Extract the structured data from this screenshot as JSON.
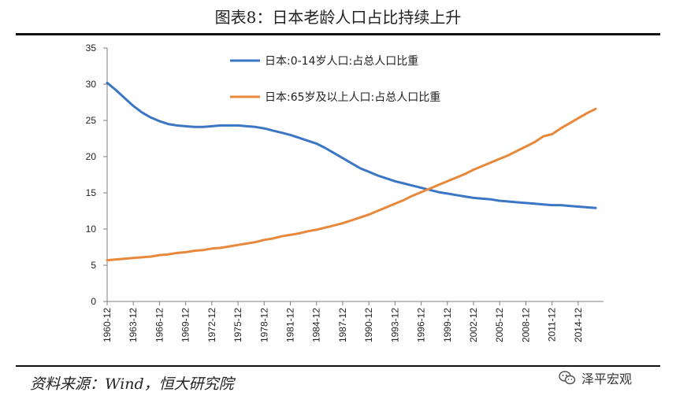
{
  "title": "图表8：日本老龄人口占比持续上升",
  "source": "资料来源：Wind，恒大研究院",
  "watermark": "泽平宏观",
  "colors": {
    "blue": "#3b76c4",
    "orange": "#e8883a",
    "axis": "#7f7f7f"
  },
  "chart_data": {
    "type": "line",
    "ylim": [
      0,
      35
    ],
    "yticks": [
      0,
      5,
      10,
      15,
      20,
      25,
      30,
      35
    ],
    "xticks": [
      "1960-12",
      "1963-12",
      "1966-12",
      "1969-12",
      "1972-12",
      "1975-12",
      "1978-12",
      "1981-12",
      "1984-12",
      "1987-12",
      "1990-12",
      "1993-12",
      "1996-12",
      "1999-12",
      "2002-12",
      "2005-12",
      "2008-12",
      "2011-12",
      "2014-12"
    ],
    "x": [
      1960,
      1961,
      1962,
      1963,
      1964,
      1965,
      1966,
      1967,
      1968,
      1969,
      1970,
      1971,
      1972,
      1973,
      1974,
      1975,
      1976,
      1977,
      1978,
      1979,
      1980,
      1981,
      1982,
      1983,
      1984,
      1985,
      1986,
      1987,
      1988,
      1989,
      1990,
      1991,
      1992,
      1993,
      1994,
      1995,
      1996,
      1997,
      1998,
      1999,
      2000,
      2001,
      2002,
      2003,
      2004,
      2005,
      2006,
      2007,
      2008,
      2009,
      2010,
      2011,
      2012,
      2013,
      2014,
      2015,
      2016
    ],
    "series": [
      {
        "name": "日本:0-14岁人口:占总人口比重",
        "color": "#3b76c4",
        "values": [
          30.2,
          29.2,
          28.1,
          27.0,
          26.1,
          25.4,
          24.9,
          24.5,
          24.3,
          24.2,
          24.1,
          24.1,
          24.2,
          24.3,
          24.3,
          24.3,
          24.2,
          24.1,
          23.9,
          23.6,
          23.3,
          23.0,
          22.6,
          22.2,
          21.8,
          21.2,
          20.5,
          19.8,
          19.1,
          18.4,
          17.9,
          17.4,
          17.0,
          16.6,
          16.3,
          16.0,
          15.7,
          15.4,
          15.1,
          14.9,
          14.7,
          14.5,
          14.3,
          14.2,
          14.1,
          13.9,
          13.8,
          13.7,
          13.6,
          13.5,
          13.4,
          13.3,
          13.3,
          13.2,
          13.1,
          13.0,
          12.9
        ]
      },
      {
        "name": "日本:65岁及以上人口:占总人口比重",
        "color": "#e8883a",
        "values": [
          5.7,
          5.8,
          5.9,
          6.0,
          6.1,
          6.2,
          6.4,
          6.5,
          6.7,
          6.8,
          7.0,
          7.1,
          7.3,
          7.4,
          7.6,
          7.8,
          8.0,
          8.2,
          8.5,
          8.7,
          9.0,
          9.2,
          9.4,
          9.7,
          9.9,
          10.2,
          10.5,
          10.8,
          11.2,
          11.6,
          12.0,
          12.5,
          13.0,
          13.5,
          14.0,
          14.6,
          15.1,
          15.6,
          16.1,
          16.6,
          17.1,
          17.6,
          18.2,
          18.7,
          19.2,
          19.7,
          20.2,
          20.8,
          21.4,
          22.0,
          22.8,
          23.1,
          23.9,
          24.6,
          25.3,
          26.0,
          26.6
        ]
      }
    ]
  }
}
